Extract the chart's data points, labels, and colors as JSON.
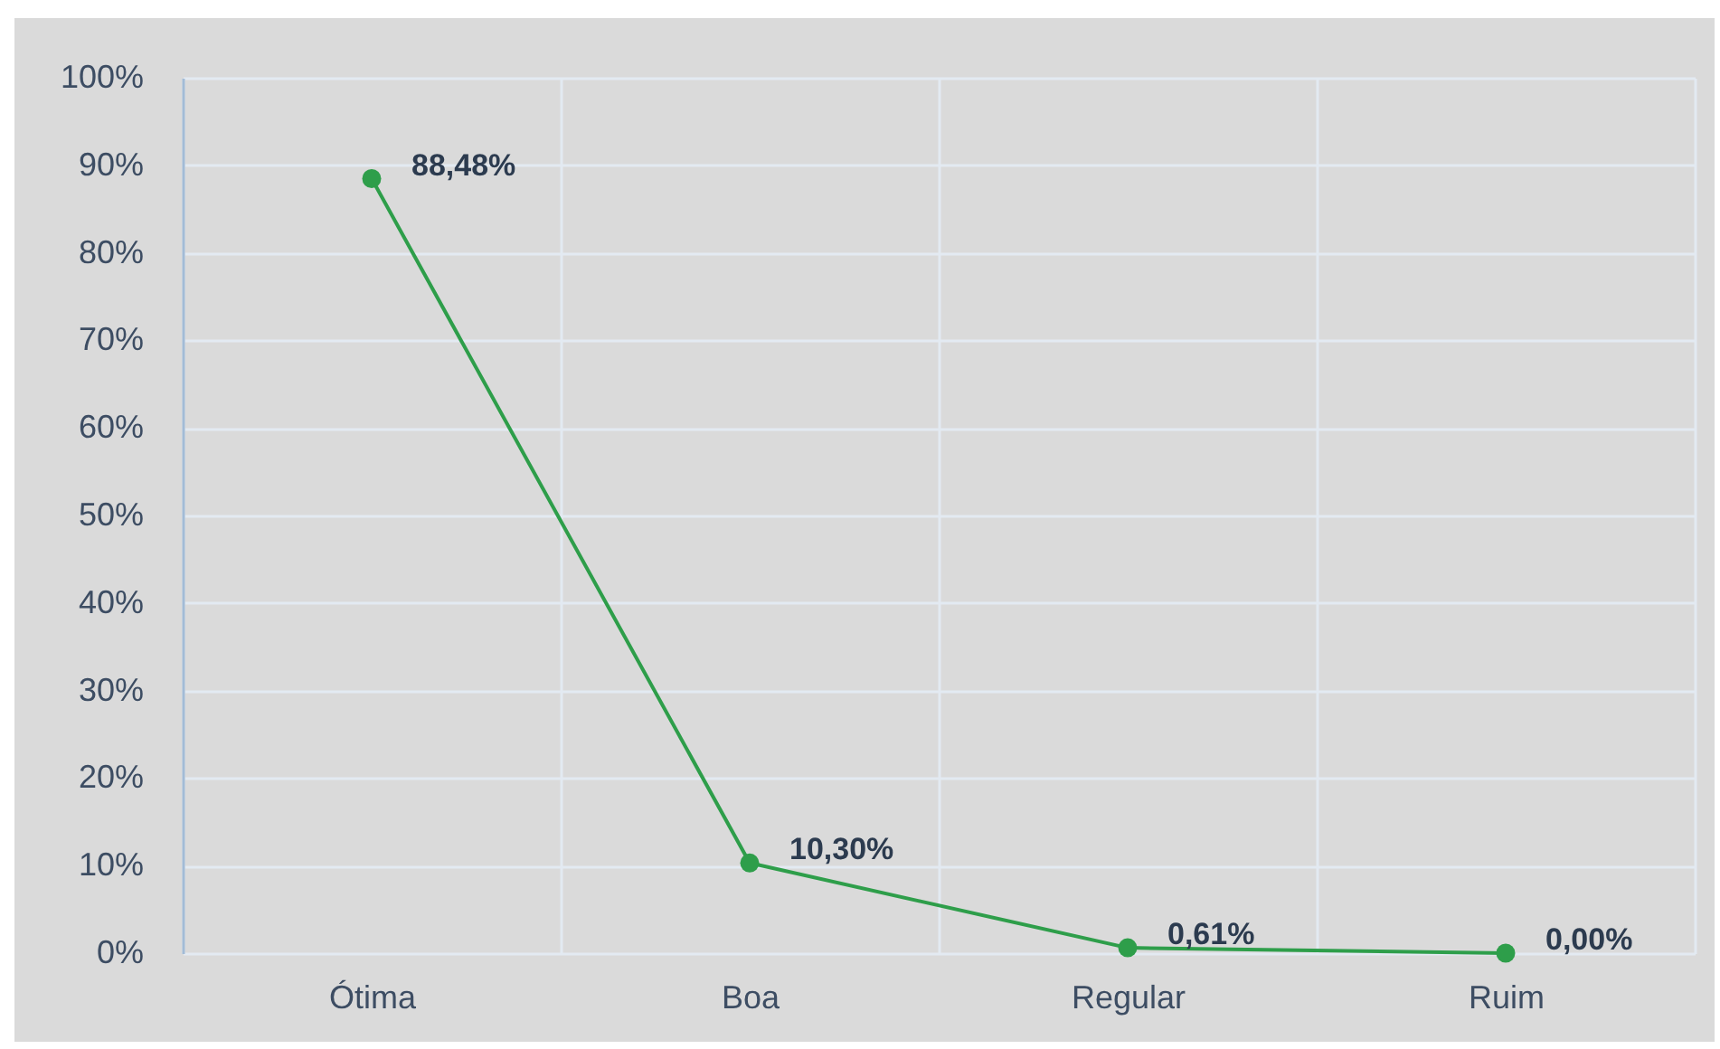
{
  "chart_data": {
    "type": "line",
    "categories": [
      "Ótima",
      "Boa",
      "Regular",
      "Ruim"
    ],
    "series": [
      {
        "color": "#2e9e4a",
        "values": [
          88.48,
          10.3,
          0.61,
          0.0
        ],
        "value_labels": [
          "88,48%",
          "10,30%",
          "0,61%",
          "0,00%"
        ]
      }
    ],
    "ylim": [
      0,
      100
    ],
    "yticks": [
      {
        "value": 0,
        "label": "0%"
      },
      {
        "value": 10,
        "label": "10%"
      },
      {
        "value": 20,
        "label": "20%"
      },
      {
        "value": 30,
        "label": "30%"
      },
      {
        "value": 40,
        "label": "40%"
      },
      {
        "value": 50,
        "label": "50%"
      },
      {
        "value": 60,
        "label": "60%"
      },
      {
        "value": 70,
        "label": "70%"
      },
      {
        "value": 80,
        "label": "80%"
      },
      {
        "value": 90,
        "label": "90%"
      },
      {
        "value": 100,
        "label": "100%"
      }
    ],
    "grid": true,
    "marker": "circle",
    "line_style": "solid"
  }
}
